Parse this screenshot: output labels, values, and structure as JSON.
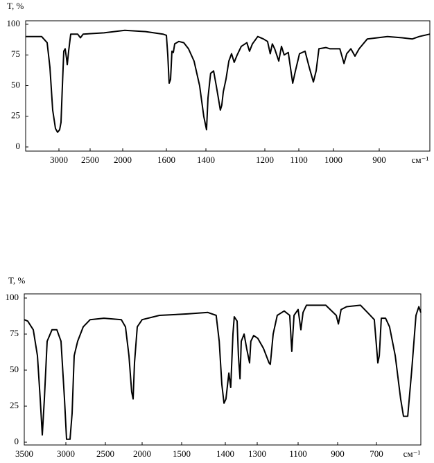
{
  "chart_data": [
    {
      "type": "line",
      "ylabel": "T, %",
      "xlabel": "см⁻¹",
      "color": "#000000",
      "xlim": [
        3500,
        790
      ],
      "ylim": [
        0,
        100
      ],
      "xticks": [
        3000,
        2500,
        2000,
        1600,
        1400,
        1200,
        1100,
        1000,
        900
      ],
      "yticks": [
        0,
        25,
        50,
        75,
        100
      ],
      "x": [
        3500,
        3260,
        3177,
        3135,
        3094,
        3052,
        3021,
        2989,
        2967,
        2944,
        2922,
        2900,
        2878,
        2867,
        2844,
        2811,
        2700,
        2656,
        2611,
        2287,
        1981,
        1790,
        1632,
        1600,
        1593,
        1586,
        1579,
        1572,
        1565,
        1558,
        1537,
        1512,
        1488,
        1460,
        1432,
        1411,
        1398,
        1393,
        1384,
        1374,
        1365,
        1358,
        1351,
        1346,
        1341,
        1332,
        1322,
        1313,
        1304,
        1294,
        1280,
        1261,
        1252,
        1242,
        1224,
        1205,
        1192,
        1184,
        1178,
        1171,
        1159,
        1151,
        1143,
        1131,
        1118,
        1110,
        1098,
        1082,
        1070,
        1058,
        1050,
        1042,
        1022,
        1010,
        998,
        986,
        977,
        971,
        962,
        953,
        944,
        926,
        882,
        850,
        828,
        813,
        790
      ],
      "values": [
        90,
        90,
        85,
        65,
        30,
        15,
        12,
        14,
        20,
        50,
        78,
        80,
        72,
        67,
        78,
        92,
        92,
        89,
        92,
        93,
        95,
        94,
        92,
        91,
        75,
        52,
        55,
        78,
        77,
        84,
        86,
        85,
        80,
        70,
        50,
        25,
        14,
        40,
        60,
        62,
        50,
        40,
        30,
        34,
        45,
        55,
        70,
        76,
        69,
        75,
        82,
        85,
        78,
        84,
        90,
        88,
        86,
        76,
        84,
        80,
        70,
        82,
        75,
        77,
        52,
        62,
        76,
        78,
        65,
        53,
        62,
        80,
        81,
        80,
        80,
        80,
        68,
        76,
        80,
        74,
        80,
        88,
        90,
        89,
        88,
        90,
        92
      ]
    },
    {
      "type": "line",
      "ylabel": "T, %",
      "xlabel": "см⁻¹",
      "color": "#000000",
      "xlim": [
        3500,
        480
      ],
      "ylim": [
        0,
        100
      ],
      "xticks": [
        3500,
        3000,
        2500,
        2000,
        1500,
        1400,
        1300,
        1100,
        900,
        700
      ],
      "yticks": [
        0,
        25,
        50,
        75,
        100
      ],
      "x": [
        3500,
        3458,
        3392,
        3342,
        3308,
        3283,
        3258,
        3225,
        3167,
        3108,
        3058,
        3017,
        2991,
        2947,
        2921,
        2895,
        2851,
        2781,
        2693,
        2518,
        2283,
        2226,
        2179,
        2142,
        2123,
        2104,
        2066,
        2000,
        1781,
        1487,
        1440,
        1421,
        1414,
        1408,
        1403,
        1398,
        1389,
        1383,
        1376,
        1372,
        1363,
        1359,
        1354,
        1350,
        1341,
        1333,
        1324,
        1320,
        1311,
        1297,
        1269,
        1242,
        1236,
        1222,
        1202,
        1168,
        1141,
        1131,
        1120,
        1100,
        1086,
        1075,
        1058,
        960,
        907,
        896,
        882,
        854,
        782,
        746,
        711,
        693,
        686,
        676,
        655,
        635,
        607,
        580,
        566,
        545,
        525,
        504,
        490,
        480
      ],
      "values": [
        85,
        84,
        78,
        60,
        30,
        5,
        30,
        70,
        78,
        78,
        70,
        30,
        2,
        2,
        20,
        60,
        70,
        80,
        85,
        86,
        85,
        80,
        60,
        35,
        30,
        55,
        80,
        85,
        88,
        89,
        90,
        88,
        70,
        40,
        27,
        30,
        48,
        38,
        75,
        87,
        84,
        60,
        44,
        70,
        75,
        65,
        55,
        70,
        74,
        72,
        65,
        55,
        54,
        75,
        88,
        91,
        88,
        63,
        88,
        92,
        78,
        90,
        95,
        95,
        88,
        82,
        92,
        94,
        95,
        90,
        85,
        55,
        60,
        86,
        86,
        80,
        60,
        30,
        18,
        18,
        50,
        88,
        94,
        90
      ]
    }
  ]
}
